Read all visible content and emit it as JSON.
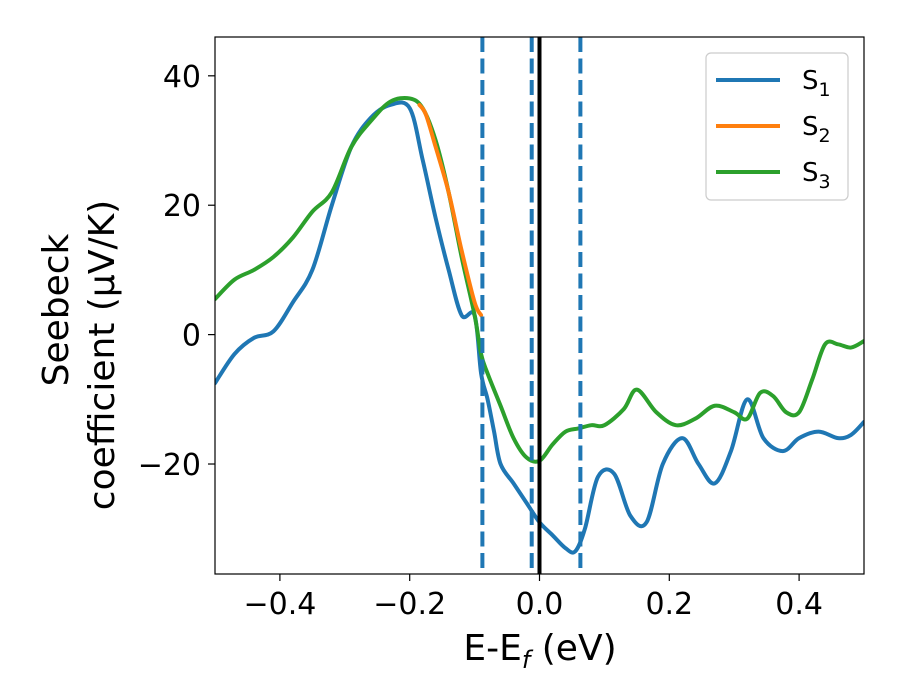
{
  "chart_data": {
    "type": "line",
    "xlabel": "E-E",
    "xlabel_sub": "f",
    "xlabel_unit": " (eV)",
    "ylabel_line1": "Seebeck",
    "ylabel_line2": "coefficient  (μV/K)",
    "xlim": [
      -0.5,
      0.5
    ],
    "ylim": [
      -37,
      46
    ],
    "x_ticks": [
      -0.4,
      -0.2,
      0.0,
      0.2,
      0.4
    ],
    "x_tick_labels": [
      "−0.4",
      "−0.2",
      "0.0",
      "0.2",
      "0.4"
    ],
    "y_ticks": [
      -20,
      0,
      20,
      40
    ],
    "y_tick_labels": [
      "−20",
      "0",
      "20",
      "40"
    ],
    "legend_position": "top-right",
    "vertical_lines": [
      {
        "x": -0.088,
        "style": "dashed",
        "color": "#1f77b4"
      },
      {
        "x": -0.012,
        "style": "dashed",
        "color": "#1f77b4"
      },
      {
        "x": 0.0,
        "style": "solid",
        "color": "#000000"
      },
      {
        "x": 0.063,
        "style": "dashed",
        "color": "#1f77b4"
      }
    ],
    "series": [
      {
        "name": "S",
        "sub": "1",
        "color": "#1f77b4",
        "x": [
          -0.5,
          -0.47,
          -0.44,
          -0.41,
          -0.38,
          -0.35,
          -0.32,
          -0.29,
          -0.26,
          -0.23,
          -0.2,
          -0.18,
          -0.16,
          -0.14,
          -0.12,
          -0.1,
          -0.09,
          -0.08,
          -0.07,
          -0.06,
          -0.04,
          -0.02,
          0.0,
          0.02,
          0.04,
          0.055,
          0.07,
          0.09,
          0.115,
          0.14,
          0.165,
          0.19,
          0.22,
          0.245,
          0.27,
          0.295,
          0.32,
          0.345,
          0.375,
          0.4,
          0.43,
          0.46,
          0.48,
          0.5
        ],
        "y": [
          -7.5,
          -3,
          -0.5,
          0.5,
          5,
          10,
          20,
          29,
          33.5,
          35.5,
          35,
          27,
          18,
          10,
          3,
          3,
          -6,
          -10,
          -15,
          -20,
          -23,
          -26,
          -29,
          -31,
          -33,
          -33.5,
          -30,
          -22,
          -21.5,
          -28,
          -29,
          -20,
          -16,
          -20,
          -23,
          -18,
          -10,
          -16,
          -18,
          -16,
          -15,
          -16,
          -15.5,
          -13.5
        ]
      },
      {
        "name": "S",
        "sub": "2",
        "color": "#ff7f0e",
        "x": [
          -0.185,
          -0.175,
          -0.16,
          -0.14,
          -0.12,
          -0.1,
          -0.09
        ],
        "y": [
          35.5,
          34,
          29,
          22,
          13,
          5,
          3
        ]
      },
      {
        "name": "S",
        "sub": "3",
        "color": "#2ca02c",
        "x": [
          -0.5,
          -0.47,
          -0.44,
          -0.41,
          -0.38,
          -0.35,
          -0.32,
          -0.29,
          -0.26,
          -0.23,
          -0.2,
          -0.18,
          -0.16,
          -0.14,
          -0.12,
          -0.1,
          -0.09,
          -0.08,
          -0.06,
          -0.04,
          -0.02,
          0.0,
          0.02,
          0.04,
          0.06,
          0.08,
          0.1,
          0.13,
          0.15,
          0.18,
          0.21,
          0.24,
          0.27,
          0.3,
          0.32,
          0.34,
          0.36,
          0.38,
          0.4,
          0.42,
          0.44,
          0.46,
          0.48,
          0.5
        ],
        "y": [
          5.5,
          8.5,
          10,
          12,
          15,
          19,
          22,
          29,
          33,
          36,
          36.5,
          35,
          30,
          22,
          12,
          3,
          -3,
          -6,
          -11,
          -16,
          -19,
          -19.5,
          -17,
          -15,
          -14.5,
          -14,
          -14,
          -11.5,
          -8.5,
          -12,
          -14,
          -13,
          -11,
          -12,
          -13,
          -9,
          -9.5,
          -12,
          -12,
          -7,
          -1.5,
          -1.5,
          -2,
          -1
        ]
      }
    ]
  }
}
